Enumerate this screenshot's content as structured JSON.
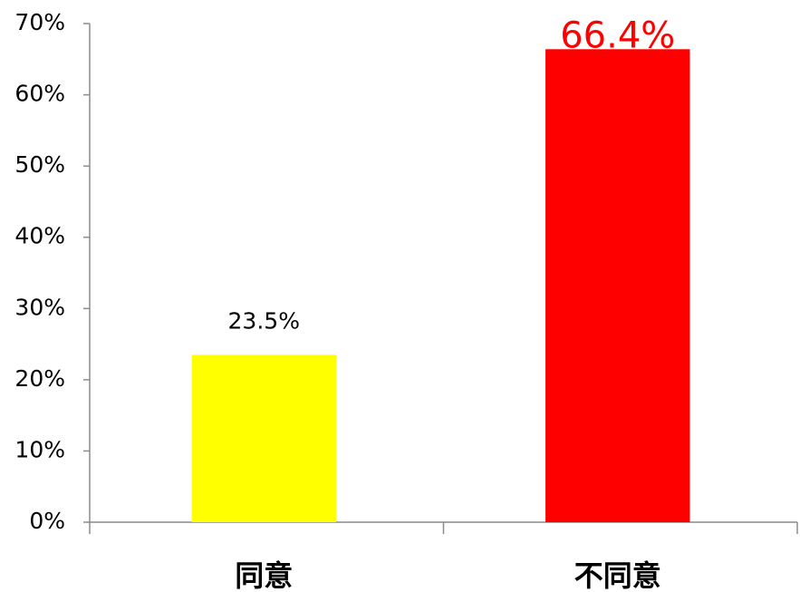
{
  "chart_data": {
    "type": "bar",
    "categories": [
      "同意",
      "不同意"
    ],
    "values": [
      23.5,
      66.4
    ],
    "value_labels": [
      "23.5%",
      "66.4%"
    ],
    "colors": [
      "#ffff00",
      "#ff0000"
    ],
    "value_label_colors": [
      "#000000",
      "#ff0000"
    ],
    "ylim": [
      0,
      70
    ],
    "yticks": [
      {
        "value": 0,
        "label": "0%"
      },
      {
        "value": 10,
        "label": "10%"
      },
      {
        "value": 20,
        "label": "20%"
      },
      {
        "value": 30,
        "label": "30%"
      },
      {
        "value": 40,
        "label": "40%"
      },
      {
        "value": 50,
        "label": "50%"
      },
      {
        "value": 60,
        "label": "60%"
      },
      {
        "value": 70,
        "label": "70%"
      }
    ],
    "grid": false
  }
}
